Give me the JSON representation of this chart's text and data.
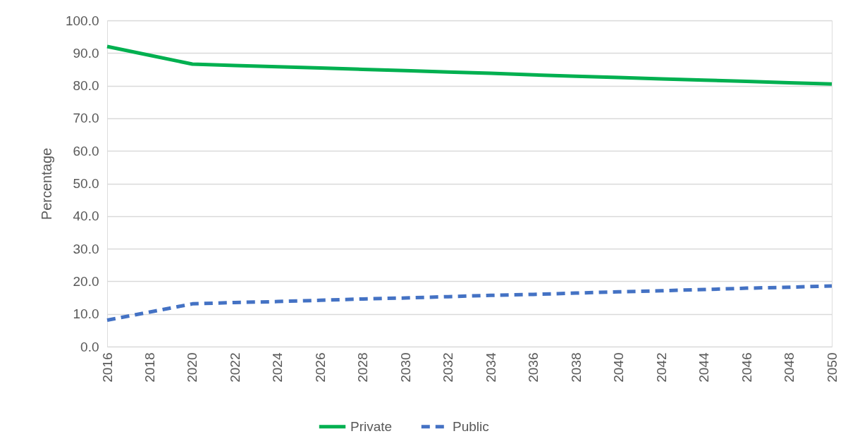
{
  "chart_data": {
    "type": "line",
    "ylabel": "Percentage",
    "x": [
      2016,
      2018,
      2020,
      2022,
      2024,
      2026,
      2028,
      2030,
      2032,
      2034,
      2036,
      2038,
      2040,
      2042,
      2044,
      2046,
      2048,
      2050
    ],
    "series": [
      {
        "name": "Private",
        "color": "#00b050",
        "line_style": "solid",
        "values": [
          92.0,
          89.3,
          86.6,
          86.2,
          85.8,
          85.4,
          85.0,
          84.6,
          84.2,
          83.8,
          83.3,
          82.9,
          82.5,
          82.1,
          81.7,
          81.3,
          80.9,
          80.5
        ]
      },
      {
        "name": "Public",
        "color": "#4472c4",
        "line_style": "dashed",
        "values": [
          8.1,
          10.6,
          13.1,
          13.5,
          13.8,
          14.2,
          14.6,
          14.9,
          15.3,
          15.7,
          16.0,
          16.4,
          16.8,
          17.1,
          17.5,
          17.9,
          18.2,
          18.6
        ]
      }
    ],
    "xlim": [
      2016,
      2050
    ],
    "xticks": [
      2016,
      2018,
      2020,
      2022,
      2024,
      2026,
      2028,
      2030,
      2032,
      2034,
      2036,
      2038,
      2040,
      2042,
      2044,
      2046,
      2048,
      2050
    ],
    "ylim": [
      0,
      100
    ],
    "yticks": [
      {
        "value": 0,
        "label": "0.0"
      },
      {
        "value": 10,
        "label": "10.0"
      },
      {
        "value": 20,
        "label": "20.0"
      },
      {
        "value": 30,
        "label": "30.0"
      },
      {
        "value": 40,
        "label": "40.0"
      },
      {
        "value": 50,
        "label": "50.0"
      },
      {
        "value": 60,
        "label": "60.0"
      },
      {
        "value": 70,
        "label": "70.0"
      },
      {
        "value": 80,
        "label": "80.0"
      },
      {
        "value": 90,
        "label": "90.0"
      },
      {
        "value": 100,
        "label": "100.0"
      }
    ],
    "grid": "y",
    "legend": "bottom",
    "marker": "none"
  }
}
